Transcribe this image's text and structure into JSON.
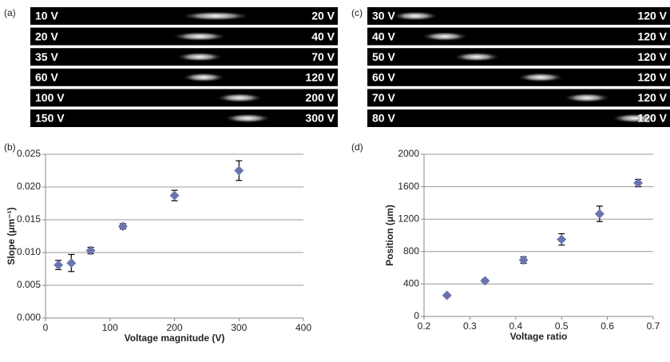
{
  "strips_a": {
    "label": "(a)",
    "rows": [
      [
        "10 V",
        "20 V"
      ],
      [
        "20 V",
        "40 V"
      ],
      [
        "35 V",
        "70 V"
      ],
      [
        "60 V",
        "120 V"
      ],
      [
        "100 V",
        "200 V"
      ],
      [
        "150 V",
        "300 V"
      ]
    ]
  },
  "strips_c": {
    "label": "(c)",
    "rows": [
      [
        "30 V",
        "120 V"
      ],
      [
        "40 V",
        "120 V"
      ],
      [
        "50 V",
        "120 V"
      ],
      [
        "60 V",
        "120 V"
      ],
      [
        "70 V",
        "120 V"
      ],
      [
        "80 V",
        "120 V"
      ]
    ]
  },
  "chart_data": [
    {
      "type": "scatter",
      "panel": "(b)",
      "xlabel": "Voltage magnitude (V)",
      "ylabel": "Slope (μm⁻¹)",
      "color": "#6a74ae",
      "grid": true,
      "x": [
        20,
        40,
        70,
        120,
        200,
        300
      ],
      "values": [
        0.0081,
        0.0084,
        0.0103,
        0.014,
        0.0187,
        0.0225
      ],
      "errors": [
        0.0007,
        0.0013,
        0.0005,
        0.0004,
        0.0008,
        0.0015
      ],
      "xlim": [
        0,
        400
      ],
      "xticks": [
        0,
        100,
        200,
        300,
        400
      ],
      "ylim": [
        0,
        0.025
      ],
      "yticks": [
        {
          "value": 0,
          "label": "0.000"
        },
        {
          "value": 0.005,
          "label": "0.005"
        },
        {
          "value": 0.01,
          "label": "0.010"
        },
        {
          "value": 0.015,
          "label": "0.015"
        },
        {
          "value": 0.02,
          "label": "0.020"
        },
        {
          "value": 0.025,
          "label": "0.025"
        }
      ]
    },
    {
      "type": "scatter",
      "panel": "(d)",
      "xlabel": "Voltage ratio",
      "ylabel": "Position (μm)",
      "color": "#6a74ae",
      "grid": true,
      "x": [
        0.25,
        0.333,
        0.417,
        0.5,
        0.583,
        0.667
      ],
      "values": [
        260,
        440,
        695,
        950,
        1265,
        1645
      ],
      "errors": [
        15,
        20,
        40,
        70,
        95,
        45
      ],
      "xlim": [
        0.2,
        0.7
      ],
      "xticks": [
        0.2,
        0.3,
        0.4,
        0.5,
        0.6,
        0.7
      ],
      "ylim": [
        0,
        2000
      ],
      "yticks": [
        0,
        400,
        800,
        1200,
        1600,
        2000
      ]
    }
  ]
}
